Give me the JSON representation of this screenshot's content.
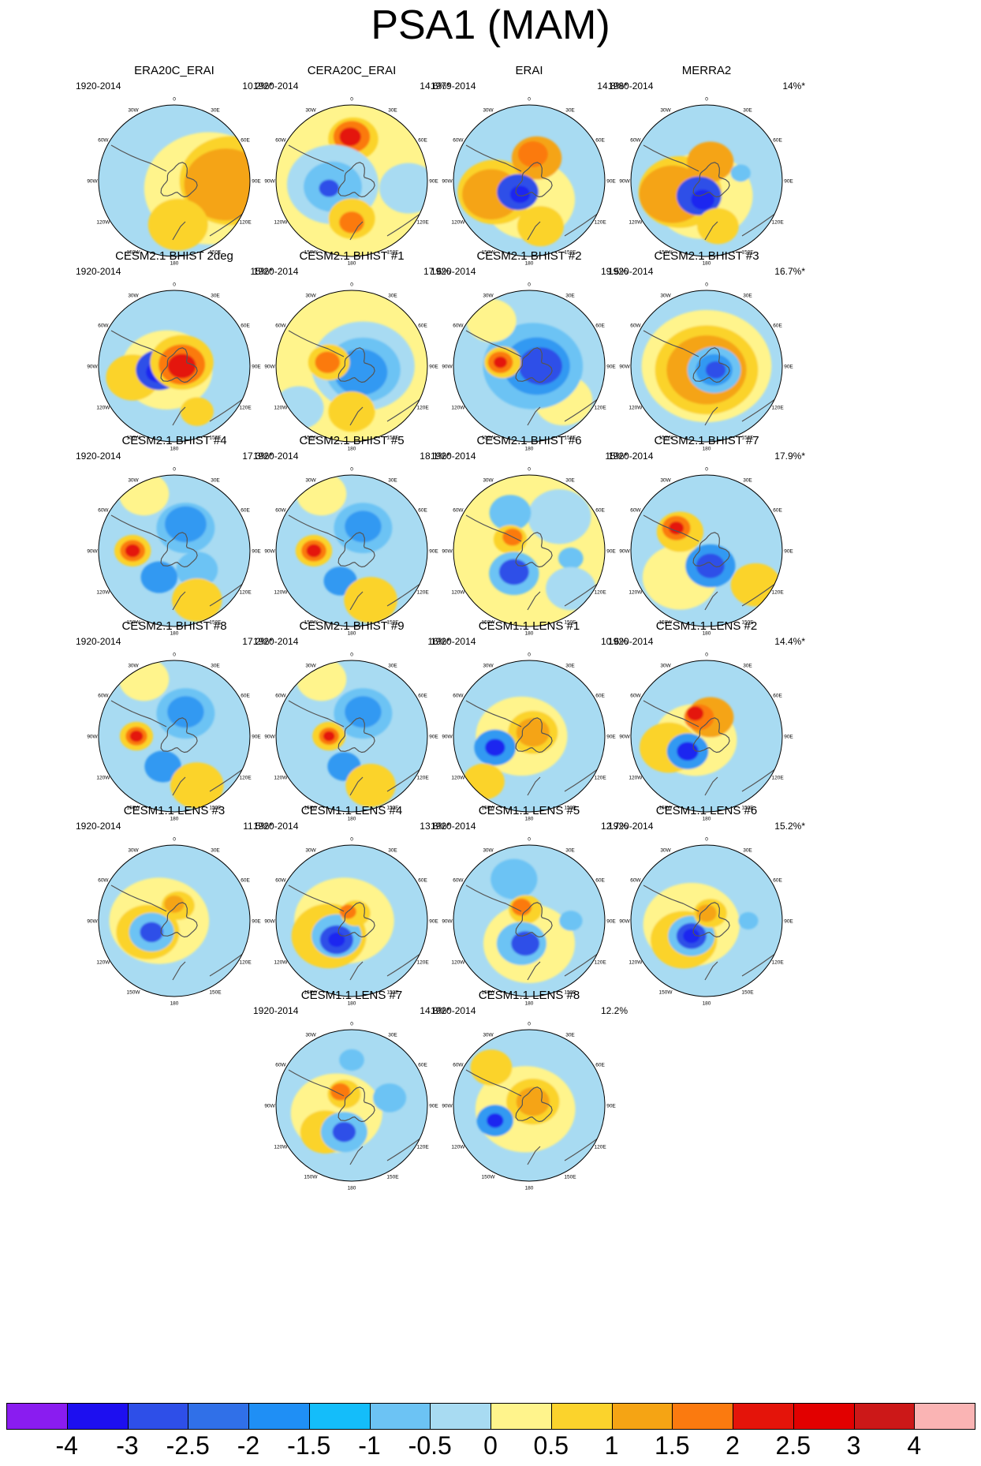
{
  "title": "PSA1 (MAM)",
  "degree_labels": [
    "0",
    "30E",
    "60E",
    "90E",
    "120E",
    "150E",
    "180",
    "150W",
    "120W",
    "90W",
    "60W",
    "30W"
  ],
  "panels": [
    {
      "title": "ERA20C_ERAI",
      "period": "1920-2014",
      "pct": "10.2%*",
      "bg": "#a8dbf2",
      "blobs": [
        [
          "#fff48c",
          0.78,
          0.46,
          0.1
        ],
        [
          "#fbd32c",
          0.62,
          0.75,
          0.0
        ],
        [
          "#f5a414",
          0.5,
          0.68,
          0.05
        ],
        [
          "#fbd32c",
          -0.42,
          0.12,
          -0.05
        ],
        [
          "#f5a414",
          -0.35,
          0.08,
          -0.1
        ],
        [
          "#fb7a0f",
          -0.24,
          0.12,
          -0.15
        ],
        [
          "#2e4fe8",
          -0.2,
          0.15,
          0.08
        ],
        [
          "#fbd32c",
          0.36,
          0.05,
          0.58
        ]
      ]
    },
    {
      "title": "CERA20C_ERAI",
      "period": "1920-2014",
      "pct": "14.6%*",
      "bg": "#fff48c",
      "blobs": [
        [
          "#fbd32c",
          0.3,
          0.02,
          -0.55
        ],
        [
          "#fb7a0f",
          0.22,
          0.0,
          -0.58
        ],
        [
          "#e4140a",
          0.13,
          -0.02,
          -0.58
        ],
        [
          "#a8dbf2",
          0.55,
          -0.25,
          0.05
        ],
        [
          "#6cc3f4",
          0.35,
          -0.25,
          0.08
        ],
        [
          "#2e4fe8",
          0.12,
          -0.3,
          0.1
        ],
        [
          "#fbd32c",
          0.28,
          0.0,
          0.5
        ],
        [
          "#fb7a0f",
          0.15,
          0.0,
          0.55
        ],
        [
          "#a8dbf2",
          0.35,
          0.75,
          0.1
        ]
      ]
    },
    {
      "title": "ERAI",
      "period": "1979-2014",
      "pct": "14.8%*",
      "bg": "#a8dbf2",
      "blobs": [
        [
          "#fff48c",
          0.55,
          0.0,
          0.25
        ],
        [
          "#fbd32c",
          0.45,
          -0.45,
          0.15
        ],
        [
          "#f5a414",
          0.35,
          -0.5,
          0.18
        ],
        [
          "#f5a414",
          0.3,
          0.1,
          -0.3
        ],
        [
          "#fb7a0f",
          0.18,
          0.05,
          -0.35
        ],
        [
          "#2e4fe8",
          0.25,
          -0.15,
          0.15
        ],
        [
          "#1d26f0",
          0.12,
          -0.12,
          0.18
        ],
        [
          "#fbd32c",
          0.28,
          0.15,
          0.6
        ]
      ]
    },
    {
      "title": "MERRA2",
      "period": "1980-2014",
      "pct": "14%*",
      "bg": "#a8dbf2",
      "blobs": [
        [
          "#fff48c",
          0.6,
          -0.05,
          0.2
        ],
        [
          "#fbd32c",
          0.5,
          -0.35,
          0.15
        ],
        [
          "#f5a414",
          0.4,
          -0.45,
          0.18
        ],
        [
          "#f5a414",
          0.28,
          0.05,
          -0.25
        ],
        [
          "#6cc3f4",
          0.12,
          0.45,
          -0.1
        ],
        [
          "#2e4fe8",
          0.27,
          -0.1,
          0.2
        ],
        [
          "#1d26f0",
          0.14,
          -0.05,
          0.25
        ],
        [
          "#fbd32c",
          0.25,
          0.15,
          0.6
        ]
      ]
    },
    {
      "title": "CESM2.1 BHIST 2deg",
      "period": "1920-2014",
      "pct": "15%*",
      "bg": "#a8dbf2",
      "blobs": [
        [
          "#fff48c",
          0.55,
          -0.1,
          0.05
        ],
        [
          "#fbd32c",
          0.32,
          -0.55,
          0.15
        ],
        [
          "#2e4fe8",
          0.28,
          -0.2,
          0.05
        ],
        [
          "#1d26f0",
          0.14,
          -0.22,
          0.08
        ],
        [
          "#fbd32c",
          0.38,
          0.1,
          -0.05
        ],
        [
          "#fb7a0f",
          0.28,
          0.1,
          -0.02
        ],
        [
          "#e4140a",
          0.17,
          0.1,
          0.0
        ],
        [
          "#fbd32c",
          0.2,
          0.3,
          0.6
        ]
      ]
    },
    {
      "title": "CESM2.1 BHIST #1",
      "period": "1920-2014",
      "pct": "17.6%",
      "bg": "#fff48c",
      "blobs": [
        [
          "#a8dbf2",
          0.62,
          0.15,
          0.0
        ],
        [
          "#6cc3f4",
          0.45,
          0.15,
          0.05
        ],
        [
          "#3399f2",
          0.32,
          0.12,
          0.08
        ],
        [
          "#fbd32c",
          0.25,
          -0.3,
          -0.05
        ],
        [
          "#fb7a0f",
          0.15,
          -0.32,
          -0.05
        ],
        [
          "#fbd32c",
          0.28,
          0.0,
          0.6
        ],
        [
          "#a8dbf2",
          0.3,
          -0.7,
          0.55
        ]
      ]
    },
    {
      "title": "CESM2.1 BHIST #2",
      "period": "1920-2014",
      "pct": "19.5%",
      "bg": "#a8dbf2",
      "blobs": [
        [
          "#fff48c",
          0.35,
          0.45,
          0.45
        ],
        [
          "#6cc3f4",
          0.6,
          0.05,
          0.0
        ],
        [
          "#3399f2",
          0.4,
          0.1,
          0.0
        ],
        [
          "#2e4fe8",
          0.26,
          0.15,
          0.0
        ],
        [
          "#fbd32c",
          0.22,
          -0.35,
          -0.05
        ],
        [
          "#fb7a0f",
          0.15,
          -0.38,
          -0.05
        ],
        [
          "#e4140a",
          0.08,
          -0.38,
          -0.05
        ],
        [
          "#fff48c",
          0.3,
          -0.5,
          -0.6
        ]
      ]
    },
    {
      "title": "CESM2.1 BHIST #3",
      "period": "1920-2014",
      "pct": "16.7%*",
      "bg": "#a8dbf2",
      "blobs": [
        [
          "#fff48c",
          0.78,
          0.0,
          0.0
        ],
        [
          "#fbd32c",
          0.62,
          0.0,
          0.05
        ],
        [
          "#f5a414",
          0.48,
          0.0,
          0.05
        ],
        [
          "#6cc3f4",
          0.32,
          0.1,
          0.05
        ],
        [
          "#3399f2",
          0.22,
          0.1,
          0.05
        ],
        [
          "#2e4fe8",
          0.12,
          0.12,
          0.05
        ]
      ]
    },
    {
      "title": "CESM2.1 BHIST #4",
      "period": "1920-2014",
      "pct": "17.3%*",
      "bg": "#a8dbf2",
      "blobs": [
        [
          "#fff48c",
          0.3,
          -0.4,
          -0.75
        ],
        [
          "#6cc3f4",
          0.35,
          0.15,
          -0.3
        ],
        [
          "#3399f2",
          0.25,
          0.15,
          -0.35
        ],
        [
          "#6cc3f4",
          0.25,
          0.3,
          0.25
        ],
        [
          "#fbd32c",
          0.22,
          -0.55,
          0.0
        ],
        [
          "#fb7a0f",
          0.15,
          -0.55,
          0.0
        ],
        [
          "#e4140a",
          0.09,
          -0.55,
          0.0
        ],
        [
          "#3399f2",
          0.22,
          -0.2,
          0.35
        ],
        [
          "#fbd32c",
          0.3,
          0.3,
          0.65
        ]
      ]
    },
    {
      "title": "CESM2.1 BHIST #5",
      "period": "1920-2014",
      "pct": "18.1%*",
      "bg": "#a8dbf2",
      "blobs": [
        [
          "#fff48c",
          0.3,
          -0.4,
          -0.75
        ],
        [
          "#6cc3f4",
          0.35,
          0.15,
          -0.3
        ],
        [
          "#3399f2",
          0.22,
          0.15,
          -0.32
        ],
        [
          "#fbd32c",
          0.22,
          -0.5,
          0.0
        ],
        [
          "#fb7a0f",
          0.15,
          -0.5,
          0.0
        ],
        [
          "#e4140a",
          0.09,
          -0.5,
          0.0
        ],
        [
          "#3399f2",
          0.2,
          -0.15,
          0.4
        ],
        [
          "#fbd32c",
          0.32,
          0.25,
          0.65
        ]
      ]
    },
    {
      "title": "CESM2.1 BHIST #6",
      "period": "1920-2014",
      "pct": "15%*",
      "bg": "#fff48c",
      "blobs": [
        [
          "#a8dbf2",
          0.38,
          0.4,
          -0.45
        ],
        [
          "#6cc3f4",
          0.25,
          -0.25,
          -0.5
        ],
        [
          "#fbd32c",
          0.2,
          -0.25,
          -0.15
        ],
        [
          "#fb7a0f",
          0.12,
          -0.22,
          -0.18
        ],
        [
          "#6cc3f4",
          0.3,
          -0.2,
          0.3
        ],
        [
          "#2e4fe8",
          0.18,
          -0.2,
          0.28
        ],
        [
          "#6cc3f4",
          0.15,
          0.55,
          0.1
        ],
        [
          "#a8dbf2",
          0.3,
          0.55,
          0.5
        ]
      ]
    },
    {
      "title": "CESM2.1 BHIST #7",
      "period": "1920-2014",
      "pct": "17.9%*",
      "bg": "#a8dbf2",
      "blobs": [
        [
          "#fff48c",
          0.45,
          -0.35,
          0.35
        ],
        [
          "#fbd32c",
          0.28,
          -0.35,
          -0.25
        ],
        [
          "#fb7a0f",
          0.17,
          -0.4,
          -0.3
        ],
        [
          "#e4140a",
          0.09,
          -0.4,
          -0.3
        ],
        [
          "#3399f2",
          0.3,
          0.05,
          0.2
        ],
        [
          "#2e4fe8",
          0.17,
          0.05,
          0.2
        ],
        [
          "#fbd32c",
          0.3,
          0.65,
          0.45
        ]
      ]
    },
    {
      "title": "CESM2.1 BHIST #8",
      "period": "1920-2014",
      "pct": "17.2%*",
      "bg": "#a8dbf2",
      "blobs": [
        [
          "#fff48c",
          0.3,
          -0.4,
          -0.75
        ],
        [
          "#6cc3f4",
          0.35,
          0.15,
          -0.3
        ],
        [
          "#3399f2",
          0.22,
          0.15,
          -0.32
        ],
        [
          "#fbd32c",
          0.2,
          -0.5,
          0.0
        ],
        [
          "#fb7a0f",
          0.13,
          -0.5,
          0.0
        ],
        [
          "#e4140a",
          0.08,
          -0.5,
          0.0
        ],
        [
          "#3399f2",
          0.22,
          -0.15,
          0.4
        ],
        [
          "#fbd32c",
          0.32,
          0.3,
          0.65
        ]
      ]
    },
    {
      "title": "CESM2.1 BHIST #9",
      "period": "1920-2014",
      "pct": "16%*",
      "bg": "#a8dbf2",
      "blobs": [
        [
          "#fff48c",
          0.3,
          -0.4,
          -0.75
        ],
        [
          "#6cc3f4",
          0.35,
          0.15,
          -0.3
        ],
        [
          "#3399f2",
          0.22,
          0.15,
          -0.32
        ],
        [
          "#fbd32c",
          0.2,
          -0.3,
          0.0
        ],
        [
          "#fb7a0f",
          0.12,
          -0.3,
          0.0
        ],
        [
          "#e4140a",
          0.07,
          -0.3,
          0.0
        ],
        [
          "#3399f2",
          0.2,
          -0.1,
          0.4
        ],
        [
          "#fbd32c",
          0.3,
          0.25,
          0.65
        ]
      ]
    },
    {
      "title": "CESM1.1 LENS #1",
      "period": "1920-2014",
      "pct": "10.6%",
      "bg": "#a8dbf2",
      "blobs": [
        [
          "#fff48c",
          0.55,
          -0.1,
          0.0
        ],
        [
          "#fbd32c",
          0.3,
          0.05,
          -0.05
        ],
        [
          "#f5a414",
          0.2,
          0.05,
          -0.05
        ],
        [
          "#3399f2",
          0.25,
          -0.45,
          0.15
        ],
        [
          "#1d26f0",
          0.12,
          -0.45,
          0.15
        ],
        [
          "#fbd32c",
          0.25,
          -0.6,
          0.6
        ]
      ]
    },
    {
      "title": "CESM1.1 LENS #2",
      "period": "1920-2014",
      "pct": "14.4%*",
      "bg": "#a8dbf2",
      "blobs": [
        [
          "#fff48c",
          0.5,
          -0.15,
          0.05
        ],
        [
          "#fbd32c",
          0.35,
          -0.5,
          0.15
        ],
        [
          "#f5a414",
          0.28,
          0.05,
          -0.25
        ],
        [
          "#fb7a0f",
          0.18,
          -0.1,
          -0.25
        ],
        [
          "#e4140a",
          0.1,
          -0.15,
          -0.3
        ],
        [
          "#3399f2",
          0.25,
          -0.25,
          0.2
        ],
        [
          "#1d26f0",
          0.13,
          -0.25,
          0.2
        ]
      ]
    },
    {
      "title": "CESM1.1 LENS #3",
      "period": "1920-2014",
      "pct": "11.5%*",
      "bg": "#a8dbf2",
      "blobs": [
        [
          "#fff48c",
          0.6,
          -0.2,
          0.0
        ],
        [
          "#fbd32c",
          0.38,
          -0.35,
          0.15
        ],
        [
          "#6cc3f4",
          0.27,
          -0.3,
          0.15
        ],
        [
          "#2e4fe8",
          0.14,
          -0.3,
          0.15
        ],
        [
          "#fbd32c",
          0.2,
          0.05,
          -0.2
        ],
        [
          "#f5a414",
          0.12,
          0.0,
          -0.22
        ]
      ]
    },
    {
      "title": "CESM1.1 LENS #4",
      "period": "1920-2014",
      "pct": "13.8%*",
      "bg": "#a8dbf2",
      "blobs": [
        [
          "#fff48c",
          0.6,
          -0.1,
          0.0
        ],
        [
          "#fbd32c",
          0.45,
          -0.3,
          0.2
        ],
        [
          "#6cc3f4",
          0.3,
          -0.2,
          0.2
        ],
        [
          "#2e4fe8",
          0.2,
          -0.2,
          0.25
        ],
        [
          "#1d26f0",
          0.1,
          -0.2,
          0.25
        ],
        [
          "#fbd32c",
          0.18,
          0.05,
          -0.1
        ],
        [
          "#fb7a0f",
          0.1,
          -0.05,
          -0.12
        ]
      ]
    },
    {
      "title": "CESM1.1 LENS #5",
      "period": "1920-2014",
      "pct": "12.7%",
      "bg": "#a8dbf2",
      "blobs": [
        [
          "#fff48c",
          0.55,
          0.0,
          0.3
        ],
        [
          "#6cc3f4",
          0.28,
          -0.2,
          -0.55
        ],
        [
          "#fbd32c",
          0.2,
          -0.05,
          -0.15
        ],
        [
          "#fb7a0f",
          0.12,
          -0.1,
          -0.18
        ],
        [
          "#6cc3f4",
          0.3,
          -0.1,
          0.3
        ],
        [
          "#2e4fe8",
          0.17,
          -0.05,
          0.3
        ],
        [
          "#6cc3f4",
          0.14,
          0.55,
          0.0
        ]
      ]
    },
    {
      "title": "CESM1.1 LENS #6",
      "period": "1920-2014",
      "pct": "15.2%*",
      "bg": "#a8dbf2",
      "blobs": [
        [
          "#fff48c",
          0.58,
          -0.2,
          0.05
        ],
        [
          "#fbd32c",
          0.4,
          -0.3,
          0.25
        ],
        [
          "#6cc3f4",
          0.28,
          -0.2,
          0.2
        ],
        [
          "#2e4fe8",
          0.18,
          -0.2,
          0.2
        ],
        [
          "#1d26f0",
          0.1,
          -0.2,
          0.2
        ],
        [
          "#fbd32c",
          0.2,
          0.05,
          -0.1
        ],
        [
          "#f5a414",
          0.12,
          0.0,
          -0.1
        ],
        [
          "#6cc3f4",
          0.12,
          0.55,
          0.0
        ]
      ]
    },
    {
      "title": "CESM1.1 LENS #7",
      "period": "1920-2014",
      "pct": "14.8%*",
      "bg": "#a8dbf2",
      "blobs": [
        [
          "#fff48c",
          0.55,
          -0.2,
          0.1
        ],
        [
          "#fbd32c",
          0.3,
          -0.35,
          0.35
        ],
        [
          "#6cc3f4",
          0.28,
          -0.1,
          0.35
        ],
        [
          "#2e4fe8",
          0.14,
          -0.1,
          0.35
        ],
        [
          "#fbd32c",
          0.2,
          -0.1,
          -0.15
        ],
        [
          "#fb7a0f",
          0.12,
          -0.15,
          -0.18
        ],
        [
          "#6cc3f4",
          0.2,
          0.5,
          -0.1
        ],
        [
          "#6cc3f4",
          0.15,
          0.0,
          -0.6
        ]
      ]
    },
    {
      "title": "CESM1.1 LENS #8",
      "period": "1920-2014",
      "pct": "12.2%",
      "bg": "#a8dbf2",
      "blobs": [
        [
          "#fff48c",
          0.6,
          -0.05,
          0.05
        ],
        [
          "#fbd32c",
          0.32,
          0.05,
          -0.05
        ],
        [
          "#f5a414",
          0.2,
          0.05,
          -0.05
        ],
        [
          "#3399f2",
          0.22,
          -0.45,
          0.2
        ],
        [
          "#1d26f0",
          0.1,
          -0.45,
          0.2
        ],
        [
          "#fbd32c",
          0.25,
          -0.5,
          -0.5
        ]
      ]
    }
  ],
  "colorbar": {
    "colors": [
      "#8a1cf0",
      "#1d0ff0",
      "#2e4fe8",
      "#3070e8",
      "#1f8ff5",
      "#14bdfa",
      "#6cc3f4",
      "#a8dbf2",
      "#fff48c",
      "#fbd32c",
      "#f5a414",
      "#fb7a0f",
      "#e4140a",
      "#e20000",
      "#cc1818",
      "#fab4b4"
    ],
    "labels": [
      "-4",
      "-3",
      "-2.5",
      "-2",
      "-1.5",
      "-1",
      "-0.5",
      "0",
      "0.5",
      "1",
      "1.5",
      "2",
      "2.5",
      "3",
      "4"
    ]
  }
}
